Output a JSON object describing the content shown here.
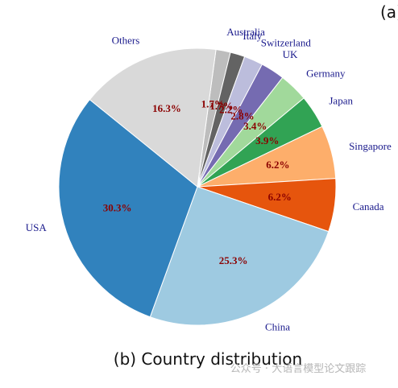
{
  "panel_label": "(a)",
  "chart_data": {
    "type": "pie",
    "categories": [
      "Australia",
      "Italy",
      "Switzerland",
      "UK",
      "Germany",
      "Japan",
      "Singapore",
      "Canada",
      "China",
      "USA",
      "Others"
    ],
    "values": [
      1.7,
      1.7,
      2.2,
      2.8,
      3.4,
      3.9,
      6.2,
      6.2,
      25.3,
      30.3,
      16.3
    ],
    "value_labels": [
      "1.7%",
      "1.7%",
      "2.2%",
      "2.8%",
      "3.4%",
      "3.9%",
      "6.2%",
      "6.2%",
      "25.3%",
      "30.3%",
      "16.3%"
    ],
    "colors": [
      "#bdbdbd",
      "#636363",
      "#bcbddc",
      "#756bb1",
      "#a1d99b",
      "#31a354",
      "#fdae6b",
      "#e6550d",
      "#9ecae1",
      "#3182bd",
      "#d9d9d9"
    ],
    "caption": "(b) Country distribution"
  },
  "watermark": "公众号 · 大语言模型论文跟踪"
}
